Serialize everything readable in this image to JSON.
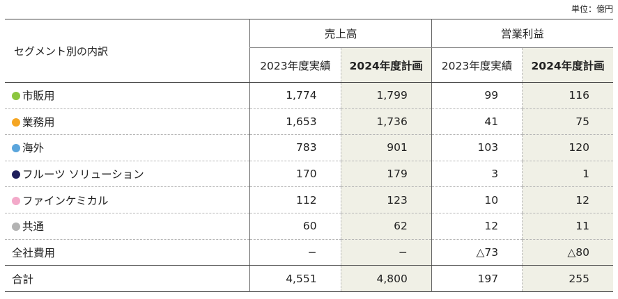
{
  "unit_label": "単位：億円",
  "header": {
    "segment_title": "セグメント別の内訳",
    "groups": [
      {
        "label": "売上高",
        "cols": [
          "2023年度実績",
          "2024年度計画"
        ]
      },
      {
        "label": "営業利益",
        "cols": [
          "2023年度実績",
          "2024年度計画"
        ]
      }
    ]
  },
  "rows": [
    {
      "label": "市販用",
      "color": "#8cc63f",
      "values": [
        "1,774",
        "1,799",
        "99",
        "116"
      ]
    },
    {
      "label": "業務用",
      "color": "#f5a623",
      "values": [
        "1,653",
        "1,736",
        "41",
        "75"
      ]
    },
    {
      "label": "海外",
      "color": "#5aa5dc",
      "values": [
        "783",
        "901",
        "103",
        "120"
      ]
    },
    {
      "label": "フルーツ ソリューション",
      "color": "#1f1f5c",
      "values": [
        "170",
        "179",
        "3",
        "1"
      ]
    },
    {
      "label": "ファインケミカル",
      "color": "#f3a9c9",
      "values": [
        "112",
        "123",
        "10",
        "12"
      ]
    },
    {
      "label": "共通",
      "color": "#b3b3b3",
      "values": [
        "60",
        "62",
        "12",
        "11"
      ]
    },
    {
      "label": "全社費用",
      "color": null,
      "values": [
        "−",
        "−",
        "△73",
        "△80"
      ]
    }
  ],
  "total": {
    "label": "合計",
    "values": [
      "4,551",
      "4,800",
      "197",
      "255"
    ]
  }
}
